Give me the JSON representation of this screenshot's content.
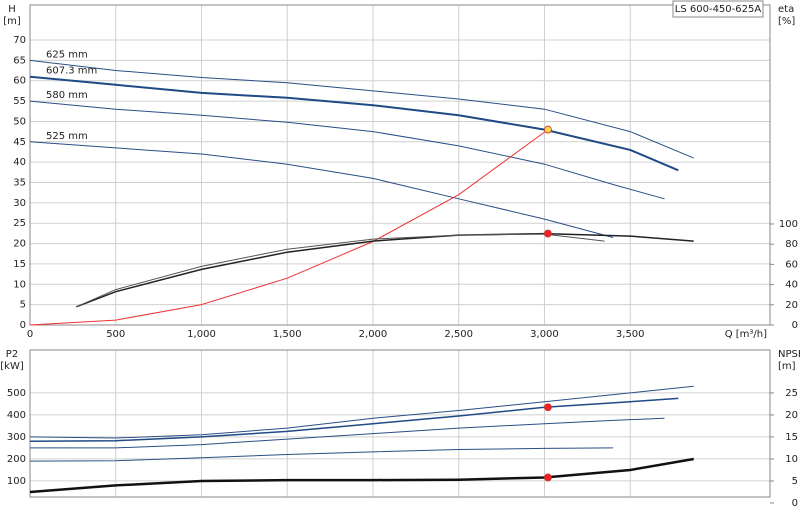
{
  "title": "LS 600-450-625A",
  "chart_data": [
    {
      "type": "line",
      "ylabel": [
        "H",
        "[m]"
      ],
      "y2label": [
        "eta",
        "[%]"
      ],
      "xlabel": "Q [m³/h]",
      "xlim": [
        0,
        4315
      ],
      "ylim": [
        0,
        78.6
      ],
      "y2lim": [
        0,
        316.7
      ],
      "xticks": [
        0,
        500,
        {
          "value": 1000,
          "label": "1,000"
        },
        {
          "value": 1500,
          "label": "1,500"
        },
        {
          "value": 2000,
          "label": "2,000"
        },
        {
          "value": 2500,
          "label": "2,500"
        },
        {
          "value": 3000,
          "label": "3,000"
        },
        {
          "value": 3500,
          "label": "3,500"
        }
      ],
      "show_xtick_labels": true,
      "yticks": [
        0,
        5,
        10,
        15,
        20,
        25,
        30,
        35,
        40,
        45,
        50,
        55,
        60,
        65,
        70
      ],
      "y2ticks": [
        0,
        20,
        40,
        60,
        80,
        100
      ],
      "grid": true,
      "series": [
        {
          "name": "625 mm",
          "color": "#2a4f86",
          "width": 1,
          "x": [
            0,
            500,
            1000,
            1500,
            2000,
            2500,
            3000,
            3500,
            3870
          ],
          "values": [
            65,
            62.5,
            60.8,
            59.5,
            57.5,
            55.5,
            53,
            47.5,
            41
          ]
        },
        {
          "name": "607.3 mm",
          "color": "#1f4a85",
          "width": 2,
          "x": [
            0,
            500,
            1000,
            1500,
            2000,
            2500,
            3000,
            3500,
            3780
          ],
          "values": [
            61,
            59,
            57,
            55.8,
            54,
            51.5,
            48,
            43,
            38
          ]
        },
        {
          "name": "580 mm",
          "color": "#2a4f86",
          "width": 1,
          "x": [
            0,
            500,
            1000,
            1500,
            2000,
            2500,
            3000,
            3400,
            3700
          ],
          "values": [
            55,
            53,
            51.5,
            49.8,
            47.5,
            44,
            39.5,
            34.5,
            31
          ]
        },
        {
          "name": "525 mm",
          "color": "#2a4f86",
          "width": 1,
          "x": [
            0,
            500,
            1000,
            1500,
            2000,
            2500,
            3000,
            3400
          ],
          "values": [
            45,
            43.5,
            42,
            39.5,
            36,
            31,
            26,
            21.5
          ]
        },
        {
          "color": "#ee3333",
          "width": 1,
          "x": [
            0,
            500,
            1000,
            1500,
            2000,
            2500,
            3020
          ],
          "values": [
            0,
            1.2,
            5,
            11.5,
            20.5,
            32,
            48
          ]
        },
        {
          "color": "#222222",
          "width": 1.5,
          "axis": "y2",
          "x": [
            270,
            500,
            1000,
            1500,
            2000,
            2500,
            3000,
            3500,
            3870
          ],
          "values": [
            18,
            33,
            55,
            72,
            83,
            89,
            90.5,
            88,
            83
          ]
        },
        {
          "color": "#555555",
          "width": 1,
          "axis": "y2",
          "x": [
            270,
            500,
            1000,
            1500,
            2000,
            2500,
            3000,
            3350
          ],
          "values": [
            18,
            35,
            58,
            75,
            85,
            89,
            90,
            83
          ]
        }
      ],
      "markers": [
        {
          "x": 3020,
          "y": 48,
          "color": "#ffd84a"
        },
        {
          "x": 3020,
          "y": 90.5,
          "color": "#ee2222",
          "axis": "y2"
        }
      ]
    },
    {
      "type": "line",
      "ylabel": [
        "P2",
        "[kW]"
      ],
      "y2label": [
        "NPSH",
        "[m]"
      ],
      "xlim": [
        0,
        4315
      ],
      "ylim": [
        27,
        695
      ],
      "y2lim": [
        1.36,
        34.75
      ],
      "xticks": [
        0,
        500,
        1000,
        1500,
        2000,
        2500,
        3000,
        3500
      ],
      "show_xtick_labels": false,
      "yticks": [
        100,
        200,
        300,
        400,
        500
      ],
      "y2ticks": [
        0,
        5,
        10,
        15,
        20,
        25
      ],
      "grid": true,
      "series": [
        {
          "color": "#2a4f86",
          "width": 1,
          "x": [
            0,
            500,
            1000,
            1500,
            2000,
            2500,
            3000,
            3500,
            3870
          ],
          "values": [
            300,
            295,
            310,
            340,
            385,
            420,
            460,
            500,
            530
          ]
        },
        {
          "color": "#1f4a85",
          "width": 1.5,
          "x": [
            0,
            500,
            1000,
            1500,
            2000,
            2500,
            3000,
            3500,
            3780
          ],
          "values": [
            280,
            283,
            300,
            325,
            360,
            395,
            435,
            460,
            475
          ]
        },
        {
          "color": "#2a4f86",
          "width": 1,
          "x": [
            0,
            500,
            1000,
            1500,
            2000,
            2500,
            3000,
            3400,
            3700
          ],
          "values": [
            250,
            250,
            265,
            290,
            315,
            340,
            360,
            375,
            385
          ]
        },
        {
          "color": "#2a4f86",
          "width": 1,
          "x": [
            0,
            500,
            1000,
            1500,
            2000,
            2500,
            3000,
            3400
          ],
          "values": [
            190,
            192,
            205,
            220,
            232,
            243,
            248,
            250
          ]
        },
        {
          "color": "#111111",
          "width": 2.5,
          "axis": "y2",
          "x": [
            0,
            500,
            1000,
            1500,
            2000,
            2500,
            3000,
            3500,
            3870
          ],
          "values": [
            2.5,
            4,
            5,
            5.2,
            5.2,
            5.3,
            5.8,
            7.5,
            10
          ]
        }
      ],
      "markers": [
        {
          "x": 3020,
          "y": 435,
          "color": "#ee2222"
        },
        {
          "x": 3020,
          "y": 5.8,
          "color": "#ee2222",
          "axis": "y2"
        }
      ]
    }
  ]
}
